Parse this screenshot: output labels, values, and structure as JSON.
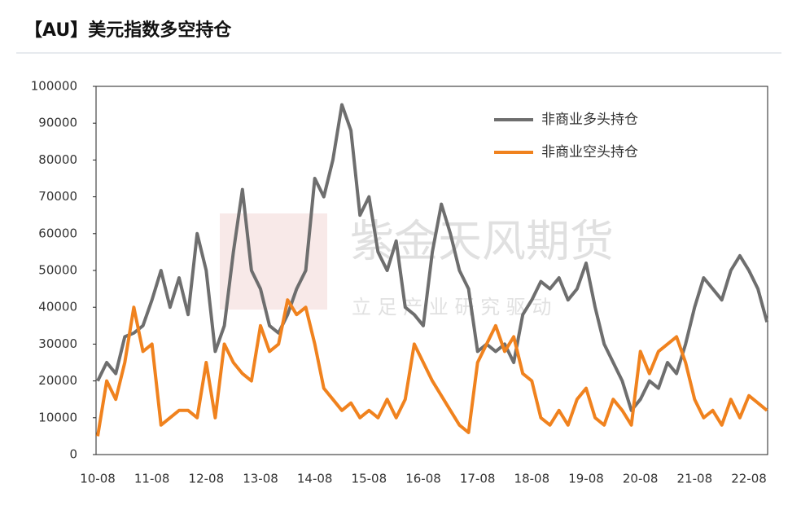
{
  "chart_data": {
    "type": "line",
    "title": "【AU】美元指数多空持仓",
    "watermark": {
      "brand": "紫金天风期货",
      "slogan": "立 足 产 业 研 究 驱 动"
    },
    "categories": [
      "10-08",
      null,
      null,
      null,
      null,
      null,
      "11-08",
      null,
      null,
      null,
      null,
      null,
      "12-08",
      null,
      null,
      null,
      null,
      null,
      "13-08",
      null,
      null,
      null,
      null,
      null,
      "14-08",
      null,
      null,
      null,
      null,
      null,
      "15-08",
      null,
      null,
      null,
      null,
      null,
      "16-08",
      null,
      null,
      null,
      null,
      null,
      "17-08",
      null,
      null,
      null,
      null,
      null,
      "18-08",
      null,
      null,
      null,
      null,
      null,
      "19-08",
      null,
      null,
      null,
      null,
      null,
      "20-08",
      null,
      null,
      null,
      null,
      null,
      "21-08",
      null,
      null,
      null,
      null,
      null,
      "22-08",
      null,
      null
    ],
    "series": [
      {
        "name": "非商业多头持仓",
        "color": "#6e6e6e",
        "values": [
          20000,
          25000,
          22000,
          32000,
          33000,
          35000,
          42000,
          50000,
          40000,
          48000,
          38000,
          60000,
          50000,
          28000,
          35000,
          55000,
          72000,
          50000,
          45000,
          35000,
          33000,
          38000,
          45000,
          50000,
          75000,
          70000,
          80000,
          95000,
          88000,
          65000,
          70000,
          55000,
          50000,
          58000,
          40000,
          38000,
          35000,
          55000,
          68000,
          60000,
          50000,
          45000,
          28000,
          30000,
          28000,
          30000,
          25000,
          38000,
          42000,
          47000,
          45000,
          48000,
          42000,
          45000,
          52000,
          40000,
          30000,
          25000,
          20000,
          12000,
          15000,
          20000,
          18000,
          25000,
          22000,
          30000,
          40000,
          48000,
          45000,
          42000,
          50000,
          54000,
          50000,
          45000,
          36000
        ]
      },
      {
        "name": "非商业空头持仓",
        "color": "#f0821e",
        "values": [
          5000,
          20000,
          15000,
          25000,
          40000,
          28000,
          30000,
          8000,
          10000,
          12000,
          12000,
          10000,
          25000,
          10000,
          30000,
          25000,
          22000,
          20000,
          35000,
          28000,
          30000,
          42000,
          38000,
          40000,
          30000,
          18000,
          15000,
          12000,
          14000,
          10000,
          12000,
          10000,
          15000,
          10000,
          15000,
          30000,
          25000,
          20000,
          16000,
          12000,
          8000,
          6000,
          25000,
          30000,
          35000,
          28000,
          32000,
          22000,
          20000,
          10000,
          8000,
          12000,
          8000,
          15000,
          18000,
          10000,
          8000,
          15000,
          12000,
          8000,
          28000,
          22000,
          28000,
          30000,
          32000,
          25000,
          15000,
          10000,
          12000,
          8000,
          15000,
          10000,
          16000,
          14000,
          12000
        ]
      }
    ],
    "ylim": [
      0,
      100000
    ],
    "yticks": [
      0,
      10000,
      20000,
      30000,
      40000,
      50000,
      60000,
      70000,
      80000,
      90000,
      100000
    ],
    "legend": "top-right"
  }
}
